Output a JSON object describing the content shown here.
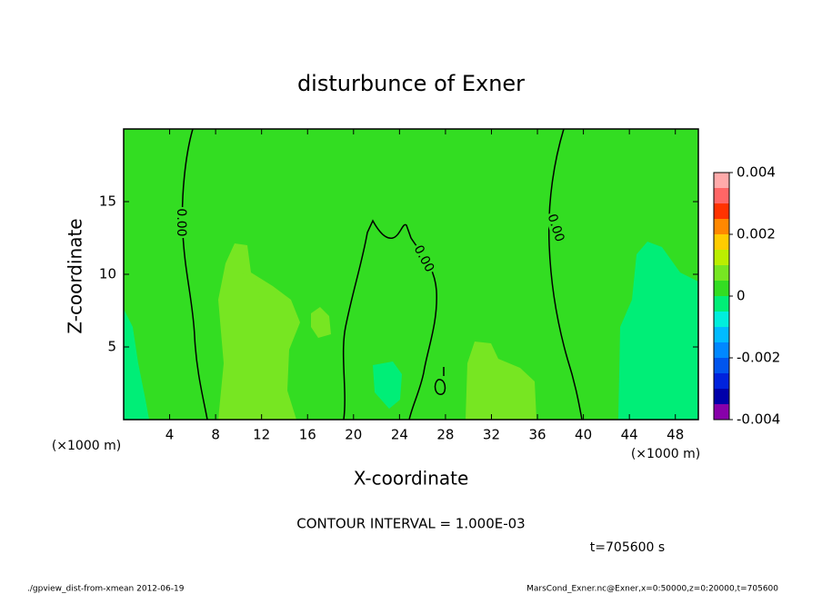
{
  "chart_data": {
    "type": "contour",
    "title": "disturbunce of Exner",
    "x_label": "X-coordinate",
    "y_label": "Z-coordinate",
    "x_unit": "(×1000 m)",
    "x_unit_right": "(×1000 m)",
    "xlim": [
      0,
      50
    ],
    "xticks": [
      4,
      8,
      12,
      16,
      20,
      24,
      28,
      32,
      36,
      40,
      44,
      48
    ],
    "ylim": [
      0,
      20
    ],
    "yticks": [
      5,
      10,
      15
    ],
    "levels": [
      -0.004,
      -0.0035,
      -0.003,
      -0.0025,
      -0.002,
      -0.0015,
      -0.001,
      -0.0005,
      0,
      0.0005,
      0.001,
      0.0015,
      0.002,
      0.0025,
      0.003,
      0.0035,
      0.004
    ],
    "colors": [
      "#8800aa",
      "#0000aa",
      "#0022dd",
      "#0055ee",
      "#0088ff",
      "#00bbff",
      "#00eedd",
      "#00ee77",
      "#33dd22",
      "#77e622",
      "#bbee00",
      "#ffcc00",
      "#ff8800",
      "#ff3300",
      "#ff6666",
      "#ffaaaa"
    ],
    "cticks": [
      -0.004,
      -0.002,
      0,
      0.002,
      0.004
    ],
    "contour_labels": [
      "0.00",
      "0.00",
      "0.00"
    ],
    "contour_interval": "CONTOUR INTERVAL = 1.000E-03",
    "time": "t=705600 s",
    "footer_left": "./gpview_dist-from-xmean  2012-06-19",
    "footer_right": "MarsCond_Exner.nc@Exner,x=0:50000,z=0:20000,t=705600"
  }
}
